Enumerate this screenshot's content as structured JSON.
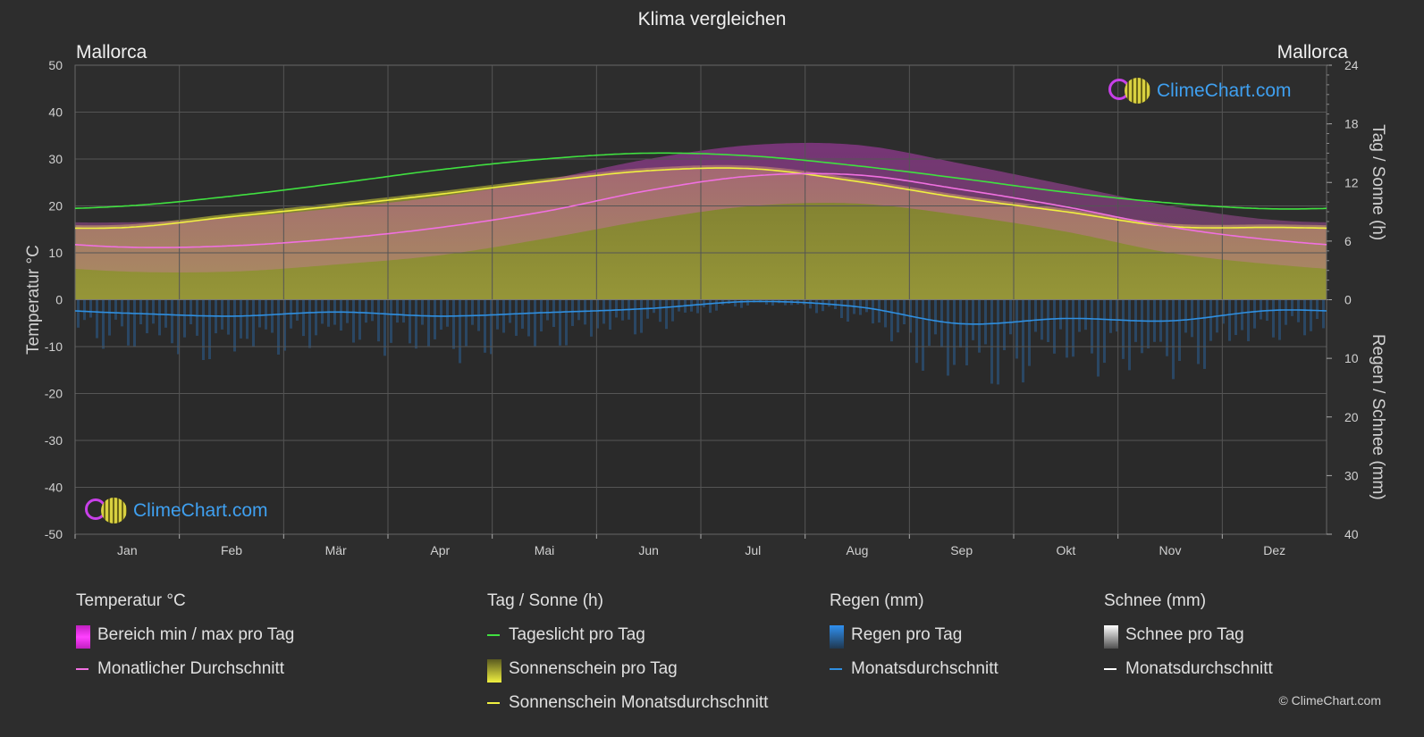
{
  "title": "Klima vergleichen",
  "location_left": "Mallorca",
  "location_right": "Mallorca",
  "watermark": "ClimeChart.com",
  "copyright": "© ClimeChart.com",
  "colors": {
    "background": "#2d2d2d",
    "temp_range": "#e040e0",
    "temp_avg": "#f070e0",
    "daylight": "#40e040",
    "sunshine": "#c8c83c",
    "sunshine_avg": "#f0f040",
    "rain": "#2a7fd0",
    "rain_avg": "#2f8fe0",
    "snow_avg": "#ffffff"
  },
  "chart_data": {
    "type": "area",
    "categories": [
      "Jan",
      "Feb",
      "Mär",
      "Apr",
      "Mai",
      "Jun",
      "Jul",
      "Aug",
      "Sep",
      "Okt",
      "Nov",
      "Dez"
    ],
    "left_axis": {
      "label": "Temperatur °C",
      "ylim": [
        -50,
        50
      ],
      "ticks": [
        "50",
        "40",
        "30",
        "20",
        "10",
        "0",
        "-10",
        "-20",
        "-30",
        "-40",
        "-50"
      ]
    },
    "right_axis_top": {
      "label": "Tag / Sonne (h)",
      "ylim": [
        0,
        24
      ],
      "ticks": [
        "24",
        "18",
        "12",
        "6",
        "0"
      ]
    },
    "right_axis_bottom": {
      "label": "Regen / Schnee (mm)",
      "ylim": [
        0,
        40
      ],
      "ticks": [
        "10",
        "20",
        "30",
        "40"
      ]
    },
    "series": [
      {
        "name": "Tageslicht pro Tag",
        "axis": "sun",
        "values": [
          9.6,
          10.6,
          11.9,
          13.3,
          14.4,
          15.0,
          14.7,
          13.7,
          12.4,
          11.0,
          9.9,
          9.3
        ]
      },
      {
        "name": "Sonnenschein Monatsdurchschnitt",
        "axis": "sun",
        "values": [
          7.4,
          8.5,
          9.6,
          10.8,
          12.1,
          13.2,
          13.4,
          12.1,
          10.4,
          9.0,
          7.5,
          7.4
        ]
      },
      {
        "name": "Monatlicher Durchschnitt",
        "axis": "temp",
        "values": [
          11.2,
          11.5,
          13.0,
          15.4,
          18.8,
          23.3,
          26.4,
          26.6,
          23.5,
          19.8,
          15.5,
          12.7
        ]
      },
      {
        "name": "Temp max",
        "axis": "temp",
        "values": [
          16.5,
          17.5,
          19.5,
          22.0,
          25.5,
          30.0,
          33.0,
          33.0,
          29.0,
          24.5,
          20.0,
          17.0
        ]
      },
      {
        "name": "Temp min",
        "axis": "temp",
        "values": [
          6.0,
          6.0,
          7.5,
          9.5,
          13.0,
          17.0,
          20.0,
          20.5,
          18.0,
          14.5,
          10.0,
          7.5
        ]
      },
      {
        "name": "Regen Monatsdurchschnitt",
        "axis": "rain",
        "values": [
          2.3,
          2.8,
          2.1,
          2.8,
          2.2,
          1.5,
          0.3,
          1.2,
          4.1,
          3.2,
          3.6,
          1.8
        ]
      },
      {
        "name": "Schnee Monatsdurchschnitt",
        "axis": "rain",
        "values": [
          0,
          0,
          0,
          0,
          0,
          0,
          0,
          0,
          0,
          0,
          0,
          0
        ]
      }
    ],
    "grid": true
  },
  "legend": {
    "temp": {
      "header": "Temperatur °C",
      "items": [
        "Bereich min / max pro Tag",
        "Monatlicher Durchschnitt"
      ]
    },
    "sun": {
      "header": "Tag / Sonne (h)",
      "items": [
        "Tageslicht pro Tag",
        "Sonnenschein pro Tag",
        "Sonnenschein Monatsdurchschnitt"
      ]
    },
    "rain": {
      "header": "Regen (mm)",
      "items": [
        "Regen pro Tag",
        "Monatsdurchschnitt"
      ]
    },
    "snow": {
      "header": "Schnee (mm)",
      "items": [
        "Schnee pro Tag",
        "Monatsdurchschnitt"
      ]
    }
  }
}
